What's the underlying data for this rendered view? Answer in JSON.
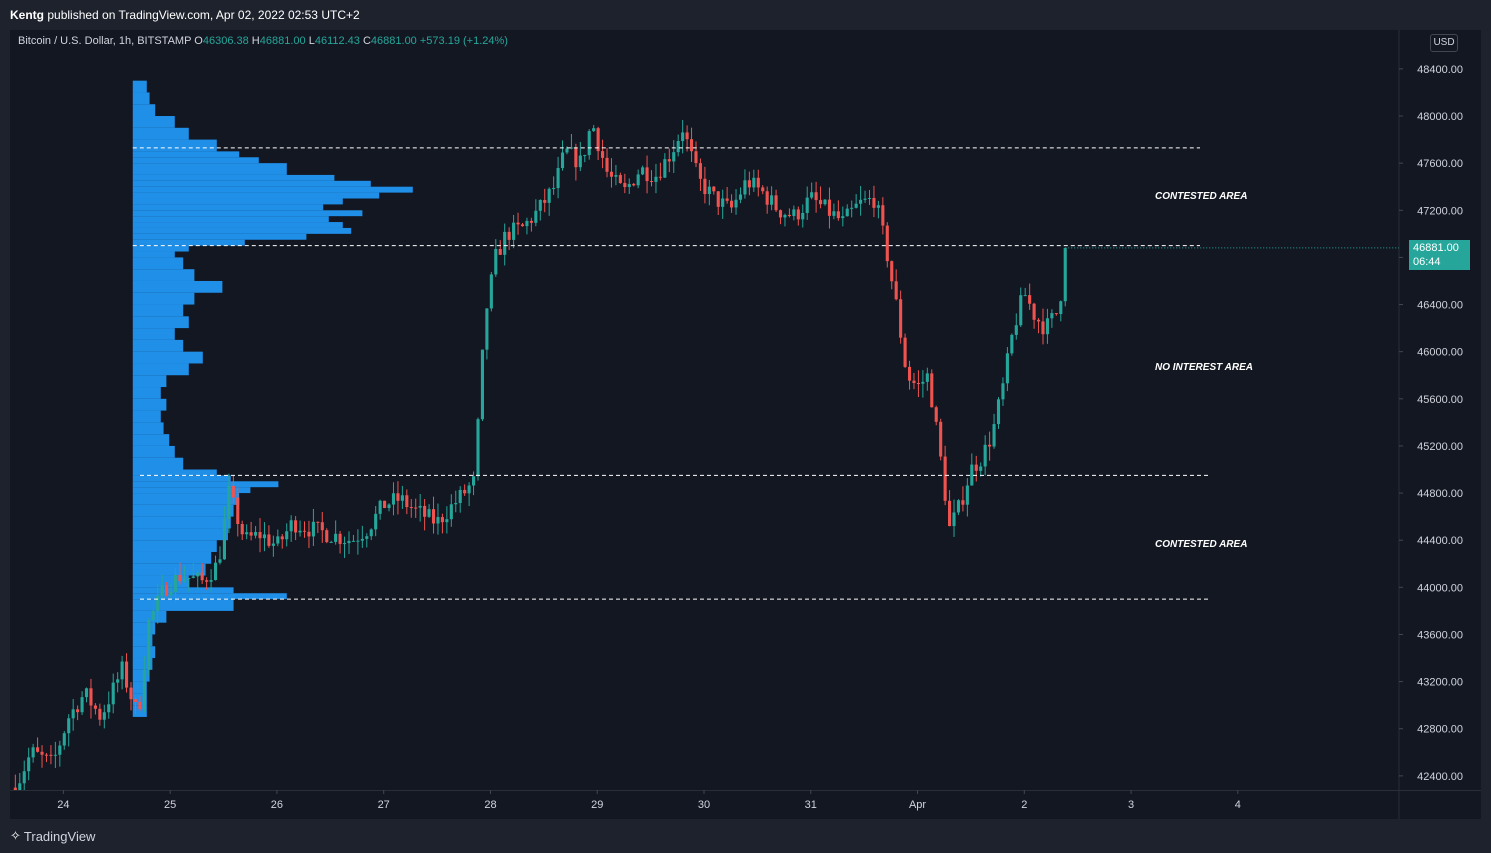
{
  "header": {
    "publisher_name": "Kentg",
    "publisher_text": "published on TradingView.com, Apr 02, 2022 02:53 UTC+2"
  },
  "legend": {
    "symbol": "Bitcoin / U.S. Dollar, 1h, BITSTAMP",
    "o_label": "O",
    "o_value": "46306.38",
    "h_label": "H",
    "h_value": "46881.00",
    "l_label": "L",
    "l_value": "46112.43",
    "c_label": "C",
    "c_value": "46881.00",
    "change": "+573.19 (+1.24%)"
  },
  "currency_button": "USD",
  "annotations": {
    "top": "CONTESTED AREA",
    "middle": "NO INTEREST AREA",
    "bottom": "CONTESTED AREA"
  },
  "price_tag": {
    "price": "46881.00",
    "countdown": "06:44"
  },
  "footer": {
    "brand": "TradingView"
  },
  "colors": {
    "background": "#131722",
    "up": "#26a69a",
    "down": "#ef5350",
    "volume_profile": "#2196f3",
    "grid": "#1e222d"
  },
  "chart_data": {
    "type": "candlestick",
    "symbol": "BTCUSD",
    "timeframe": "1h",
    "x_ticks": [
      "24",
      "25",
      "26",
      "27",
      "28",
      "29",
      "30",
      "31",
      "Apr",
      "2",
      "3",
      "4"
    ],
    "y_ticks": [
      42400,
      42800,
      43200,
      43600,
      44000,
      44400,
      44800,
      45200,
      45600,
      46000,
      46400,
      46800,
      47200,
      47600,
      48000,
      48400
    ],
    "y_tick_labels": [
      "42400.00",
      "42800.00",
      "43200.00",
      "43600.00",
      "44000.00",
      "44400.00",
      "44800.00",
      "45200.00",
      "45600.00",
      "46000.00",
      "46400.00",
      "46800.00",
      "47200.00",
      "47600.00",
      "48000.00",
      "48400.00"
    ],
    "ylim": [
      42280,
      48730
    ],
    "xlim": [
      23.5,
      36.5
    ],
    "levels": [
      47730,
      46900,
      44950,
      43900
    ],
    "last_price": 46881.0,
    "path": [
      [
        23.55,
        42300
      ],
      [
        23.7,
        42600
      ],
      [
        23.9,
        42500
      ],
      [
        24.05,
        42900
      ],
      [
        24.2,
        43100
      ],
      [
        24.35,
        42900
      ],
      [
        24.55,
        43300
      ],
      [
        24.7,
        42900
      ],
      [
        24.8,
        43700
      ],
      [
        24.95,
        44000
      ],
      [
        25.1,
        44100
      ],
      [
        25.3,
        44050
      ],
      [
        25.45,
        44200
      ],
      [
        25.55,
        44800
      ],
      [
        25.7,
        44400
      ],
      [
        25.85,
        44450
      ],
      [
        26.0,
        44350
      ],
      [
        26.15,
        44550
      ],
      [
        26.3,
        44500
      ],
      [
        26.5,
        44450
      ],
      [
        26.7,
        44400
      ],
      [
        26.85,
        44500
      ],
      [
        27.0,
        44700
      ],
      [
        27.15,
        44750
      ],
      [
        27.3,
        44650
      ],
      [
        27.5,
        44550
      ],
      [
        27.7,
        44750
      ],
      [
        27.85,
        44900
      ],
      [
        27.95,
        46300
      ],
      [
        28.05,
        46800
      ],
      [
        28.15,
        47000
      ],
      [
        28.3,
        47050
      ],
      [
        28.45,
        47200
      ],
      [
        28.6,
        47400
      ],
      [
        28.7,
        47700
      ],
      [
        28.85,
        47600
      ],
      [
        28.95,
        47950
      ],
      [
        29.1,
        47500
      ],
      [
        29.25,
        47350
      ],
      [
        29.4,
        47550
      ],
      [
        29.55,
        47500
      ],
      [
        29.7,
        47700
      ],
      [
        29.8,
        47900
      ],
      [
        29.95,
        47450
      ],
      [
        30.1,
        47300
      ],
      [
        30.25,
        47200
      ],
      [
        30.4,
        47450
      ],
      [
        30.55,
        47350
      ],
      [
        30.7,
        47200
      ],
      [
        30.85,
        47150
      ],
      [
        31.0,
        47300
      ],
      [
        31.15,
        47200
      ],
      [
        31.3,
        47100
      ],
      [
        31.45,
        47250
      ],
      [
        31.6,
        47300
      ],
      [
        31.7,
        46900
      ],
      [
        31.8,
        46400
      ],
      [
        31.9,
        45800
      ],
      [
        32.0,
        45700
      ],
      [
        32.1,
        45800
      ],
      [
        32.2,
        45200
      ],
      [
        32.3,
        44500
      ],
      [
        32.4,
        44700
      ],
      [
        32.5,
        45000
      ],
      [
        32.6,
        45100
      ],
      [
        32.7,
        45300
      ],
      [
        32.8,
        45700
      ],
      [
        32.9,
        46200
      ],
      [
        33.0,
        46500
      ],
      [
        33.1,
        46300
      ],
      [
        33.2,
        46200
      ],
      [
        33.32,
        46350
      ],
      [
        33.4,
        46881
      ]
    ],
    "volume_profile": {
      "start_x": 24.65,
      "end_x": 25.7,
      "bins": [
        [
          48300,
          0.05
        ],
        [
          48200,
          0.06
        ],
        [
          48100,
          0.08
        ],
        [
          48000,
          0.15
        ],
        [
          47900,
          0.2
        ],
        [
          47800,
          0.3
        ],
        [
          47700,
          0.38
        ],
        [
          47650,
          0.45
        ],
        [
          47600,
          0.55
        ],
        [
          47500,
          0.72
        ],
        [
          47450,
          0.85
        ],
        [
          47400,
          1.0
        ],
        [
          47350,
          0.88
        ],
        [
          47300,
          0.75
        ],
        [
          47250,
          0.68
        ],
        [
          47200,
          0.82
        ],
        [
          47150,
          0.7
        ],
        [
          47100,
          0.75
        ],
        [
          47050,
          0.78
        ],
        [
          47000,
          0.62
        ],
        [
          46950,
          0.4
        ],
        [
          46900,
          0.2
        ],
        [
          46850,
          0.15
        ],
        [
          46800,
          0.18
        ],
        [
          46700,
          0.22
        ],
        [
          46600,
          0.32
        ],
        [
          46500,
          0.22
        ],
        [
          46400,
          0.18
        ],
        [
          46300,
          0.2
        ],
        [
          46200,
          0.15
        ],
        [
          46100,
          0.18
        ],
        [
          46000,
          0.25
        ],
        [
          45900,
          0.2
        ],
        [
          45800,
          0.12
        ],
        [
          45700,
          0.1
        ],
        [
          45600,
          0.12
        ],
        [
          45500,
          0.1
        ],
        [
          45400,
          0.11
        ],
        [
          45300,
          0.13
        ],
        [
          45200,
          0.15
        ],
        [
          45100,
          0.18
        ],
        [
          45000,
          0.3
        ],
        [
          44950,
          0.35
        ],
        [
          44900,
          0.52
        ],
        [
          44850,
          0.42
        ],
        [
          44800,
          0.38
        ],
        [
          44700,
          0.36
        ],
        [
          44600,
          0.35
        ],
        [
          44500,
          0.34
        ],
        [
          44400,
          0.3
        ],
        [
          44300,
          0.28
        ],
        [
          44200,
          0.26
        ],
        [
          44100,
          0.2
        ],
        [
          44000,
          0.36
        ],
        [
          43950,
          0.55
        ],
        [
          43900,
          0.36
        ],
        [
          43800,
          0.12
        ],
        [
          43700,
          0.08
        ],
        [
          43600,
          0.07
        ],
        [
          43500,
          0.08
        ],
        [
          43400,
          0.07
        ],
        [
          43300,
          0.06
        ],
        [
          43200,
          0.05
        ],
        [
          43100,
          0.05
        ],
        [
          43000,
          0.05
        ]
      ]
    }
  }
}
